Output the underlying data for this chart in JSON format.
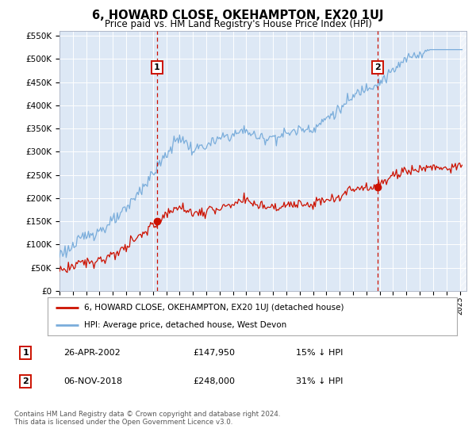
{
  "title": "6, HOWARD CLOSE, OKEHAMPTON, EX20 1UJ",
  "subtitle": "Price paid vs. HM Land Registry's House Price Index (HPI)",
  "legend_line1": "6, HOWARD CLOSE, OKEHAMPTON, EX20 1UJ (detached house)",
  "legend_line2": "HPI: Average price, detached house, West Devon",
  "annotation1_date": "26-APR-2002",
  "annotation1_price": "£147,950",
  "annotation1_hpi": "15% ↓ HPI",
  "annotation1_year": 2002.3,
  "annotation1_value": 147950,
  "annotation2_date": "06-NOV-2018",
  "annotation2_price": "£248,000",
  "annotation2_hpi": "31% ↓ HPI",
  "annotation2_year": 2018.85,
  "annotation2_value": 248000,
  "background_color": "#dde8f5",
  "plot_bg": "#dde8f5",
  "footer": "Contains HM Land Registry data © Crown copyright and database right 2024.\nThis data is licensed under the Open Government Licence v3.0.",
  "hpi_color": "#7aaddb",
  "price_color": "#cc1100",
  "grid_color": "#ffffff",
  "ylim_min": 0,
  "ylim_max": 560000,
  "xmin": 1995,
  "xmax": 2025.5
}
